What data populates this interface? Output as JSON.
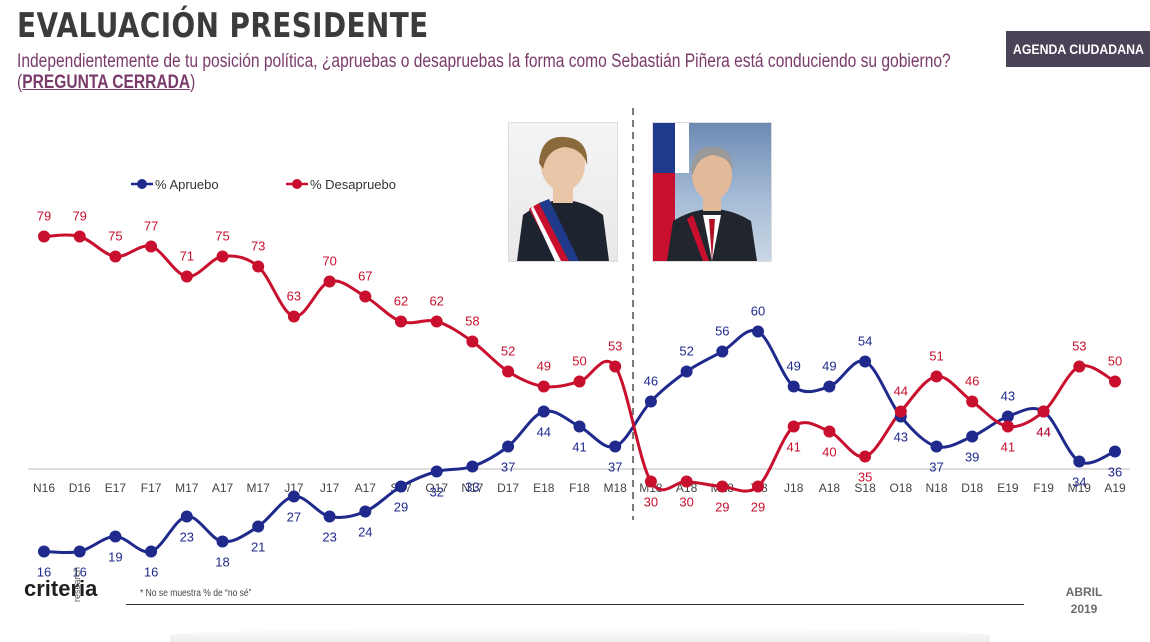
{
  "header": {
    "title": "EVALUACIÓN PRESIDENTE",
    "question": "Independientemente de tu posición política, ¿apruebas o desapruebas la forma como Sebastián Piñera está conduciendo su gobierno?",
    "type_open": "(",
    "type_label": "PREGUNTA CERRADA",
    "type_close": ")",
    "badge": "AGENDA CIUDADANA"
  },
  "photos": {
    "left": "president-portrait-left",
    "right": "president-portrait-right"
  },
  "footer": {
    "logo": "criteria",
    "logo_sub": "research",
    "note": "* No se muestra % de “no sé”",
    "date_month": "ABRIL",
    "date_year": "2019"
  },
  "colors": {
    "approve": "#1f2a8c",
    "disapprove": "#c8102e",
    "axis": "#bbbbbb",
    "divider": "#777777"
  },
  "chart_data": {
    "type": "line",
    "categories": [
      "N16",
      "D16",
      "E17",
      "F17",
      "M17",
      "A17",
      "M17",
      "J17",
      "J17",
      "A17",
      "S17",
      "O17",
      "N17",
      "D17",
      "E18",
      "F18",
      "M18",
      "M18",
      "A18",
      "M18",
      "J18",
      "J18",
      "A18",
      "S18",
      "O18",
      "N18",
      "D18",
      "E19",
      "F19",
      "M19",
      "A19"
    ],
    "series": [
      {
        "name": "% Apruebo",
        "values": [
          16,
          16,
          19,
          16,
          23,
          18,
          21,
          27,
          23,
          24,
          29,
          32,
          33,
          37,
          44,
          41,
          37,
          46,
          52,
          56,
          60,
          49,
          49,
          54,
          43,
          37,
          39,
          43,
          44,
          34,
          36
        ]
      },
      {
        "name": "% Desapruebo",
        "values": [
          79,
          79,
          75,
          77,
          71,
          75,
          73,
          63,
          70,
          67,
          62,
          62,
          58,
          52,
          49,
          50,
          53,
          30,
          30,
          29,
          29,
          41,
          40,
          35,
          44,
          51,
          46,
          41,
          44,
          53,
          50
        ]
      }
    ],
    "divider_after_index": 16,
    "ylim": [
      0,
      100
    ],
    "legend_position": "top-left",
    "grid": false
  }
}
